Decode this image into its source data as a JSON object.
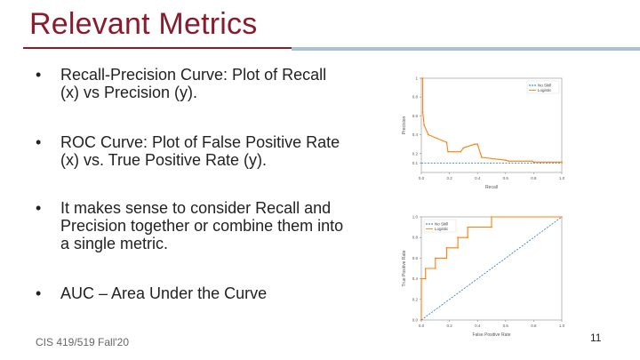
{
  "slide": {
    "title": "Relevant Metrics",
    "bullets": [
      "Recall-Precision Curve: Plot of Recall (x) vs Precision (y).",
      "ROC Curve: Plot of False Positive Rate (x) vs. True Positive Rate (y).",
      "It makes sense to consider Recall and Precision together or combine them into a single metric.",
      "AUC – Area Under the Curve"
    ],
    "bullet_symbol": "•",
    "footer": "CIS 419/519 Fall'20",
    "page_number": "11"
  },
  "colors": {
    "title": "#8b1a2b",
    "accent_line": "#a9c1d9",
    "no_skill": "#1f77b4",
    "model": "#ff7f0e"
  },
  "chart_data": [
    {
      "type": "line",
      "xlabel": "Recall",
      "ylabel": "Precision",
      "xlim": [
        0,
        1
      ],
      "ylim": [
        0,
        1
      ],
      "xticks": [
        "0.0",
        "0.2",
        "0.4",
        "0.6",
        "0.8",
        "1.0"
      ],
      "yticks": [
        "0.1",
        "0.2",
        "0.4",
        "0.6",
        "0.8",
        "1"
      ],
      "ytick_values": [
        0.1,
        0.2,
        0.4,
        0.6,
        0.8,
        1.0
      ],
      "legend": "top-right",
      "series": [
        {
          "name": "No Skill",
          "style": "dashed",
          "x": [
            0,
            1
          ],
          "y": [
            0.1,
            0.1
          ]
        },
        {
          "name": "Logistic",
          "style": "solid-markers",
          "x": [
            0,
            0.01,
            0.01,
            0.02,
            0.05,
            0.18,
            0.19,
            0.28,
            0.3,
            0.38,
            0.4,
            0.43,
            0.6,
            0.62,
            0.79,
            0.8,
            1.0,
            1.0
          ],
          "y": [
            1.0,
            1.0,
            0.64,
            0.5,
            0.4,
            0.32,
            0.22,
            0.22,
            0.26,
            0.3,
            0.3,
            0.16,
            0.13,
            0.12,
            0.12,
            0.11,
            0.11,
            0.1
          ]
        }
      ]
    },
    {
      "type": "line",
      "xlabel": "False Positive Rate",
      "ylabel": "True Positive Rate",
      "xlim": [
        0,
        1
      ],
      "ylim": [
        0,
        1
      ],
      "xticks": [
        "0.0",
        "0.2",
        "0.4",
        "0.6",
        "0.8",
        "1.0"
      ],
      "yticks": [
        "0.0",
        "0.2",
        "0.4",
        "0.6",
        "0.8",
        "1.0"
      ],
      "ytick_values": [
        0.0,
        0.2,
        0.4,
        0.6,
        0.8,
        1.0
      ],
      "legend": "top-left",
      "series": [
        {
          "name": "No Skill",
          "style": "dashed",
          "x": [
            0,
            1
          ],
          "y": [
            0,
            1
          ]
        },
        {
          "name": "Logistic",
          "style": "solid-markers",
          "x": [
            0,
            0,
            0.03,
            0.03,
            0.1,
            0.1,
            0.18,
            0.18,
            0.26,
            0.26,
            0.33,
            0.33,
            0.5,
            0.5,
            1.0
          ],
          "y": [
            0,
            0.4,
            0.4,
            0.5,
            0.5,
            0.6,
            0.6,
            0.7,
            0.7,
            0.8,
            0.8,
            0.9,
            0.9,
            1.0,
            1.0
          ]
        }
      ]
    }
  ]
}
